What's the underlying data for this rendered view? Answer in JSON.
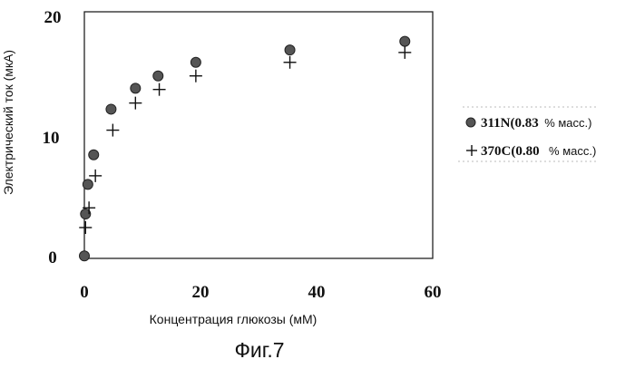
{
  "figure_caption": "Фиг.7",
  "chart_data": {
    "type": "scatter",
    "xlabel": "Концентрация глюкозы (мМ)",
    "ylabel": "Электрический ток (мкА)",
    "xlim": [
      0,
      60
    ],
    "ylim": [
      0,
      20
    ],
    "x_ticks": [
      "0",
      "20",
      "40",
      "60"
    ],
    "y_ticks": [
      "0",
      "10",
      "20"
    ],
    "grid": false,
    "legend_position": "right",
    "series": [
      {
        "name": "311N(0.83",
        "name_unit": "% масс.)",
        "marker": "filled-circle",
        "color": "#555555",
        "points": [
          {
            "x": 0,
            "y": 0.2
          },
          {
            "x": 0.2,
            "y": 3.6
          },
          {
            "x": 0.6,
            "y": 6.0
          },
          {
            "x": 1.6,
            "y": 8.4
          },
          {
            "x": 4.6,
            "y": 12.1
          },
          {
            "x": 8.8,
            "y": 13.8
          },
          {
            "x": 12.7,
            "y": 14.8
          },
          {
            "x": 19.2,
            "y": 15.9
          },
          {
            "x": 35.4,
            "y": 16.9
          },
          {
            "x": 55.2,
            "y": 17.6
          }
        ]
      },
      {
        "name": "370C(0.80",
        "name_unit": "% масс.)",
        "marker": "plus",
        "color": "#111111",
        "points": [
          {
            "x": 0.2,
            "y": 2.5
          },
          {
            "x": 0.8,
            "y": 4.1
          },
          {
            "x": 1.9,
            "y": 6.7
          },
          {
            "x": 4.9,
            "y": 10.4
          },
          {
            "x": 8.8,
            "y": 12.6
          },
          {
            "x": 12.9,
            "y": 13.7
          },
          {
            "x": 19.2,
            "y": 14.8
          },
          {
            "x": 35.4,
            "y": 15.9
          },
          {
            "x": 55.2,
            "y": 16.7
          }
        ]
      }
    ]
  }
}
